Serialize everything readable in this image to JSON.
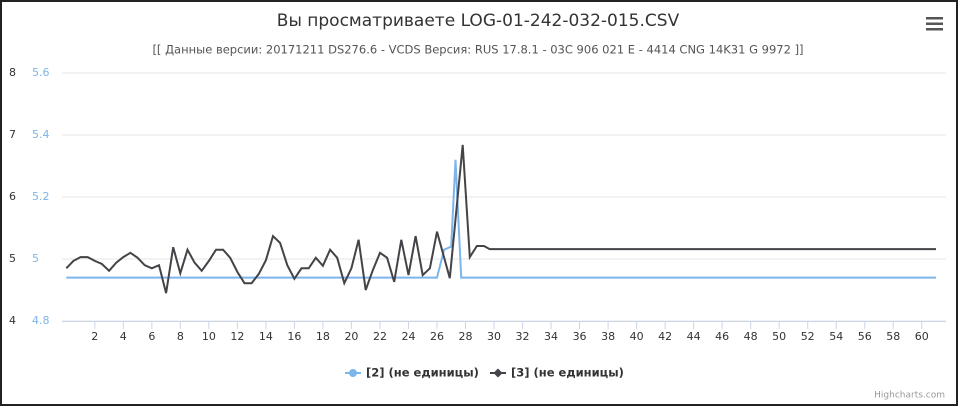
{
  "chart_data": {
    "type": "line",
    "title": "Вы просматриваете LOG-01-242-032-015.CSV",
    "subtitle": "[[ Данные версии: 20171211 DS276.6 - VCDS Версия: RUS 17.8.1 - 03C 906 021 E - 4414 CNG 14K31 G 9972 ]]",
    "credits": "Highcharts.com",
    "xlim": [
      -0.3,
      61.7
    ],
    "xticks": [
      2,
      4,
      6,
      8,
      10,
      12,
      14,
      16,
      18,
      20,
      22,
      24,
      26,
      28,
      30,
      32,
      34,
      36,
      38,
      40,
      42,
      44,
      46,
      48,
      50,
      52,
      54,
      56,
      58,
      60
    ],
    "ylim": [
      4,
      8
    ],
    "yticks": [
      4,
      5,
      6,
      7,
      8
    ],
    "y2lim": [
      4.8,
      5.6
    ],
    "y2ticks": [
      4.8,
      5,
      5.2,
      5.4,
      5.6
    ],
    "grid": true,
    "series": [
      {
        "name": "[2] (не единицы)",
        "color": "#7cb5ec",
        "axis": "y2",
        "x": [
          0,
          26,
          26.5,
          27,
          27.3,
          27.7,
          61
        ],
        "values": [
          4.94,
          4.94,
          5.03,
          5.04,
          5.32,
          4.94,
          4.94
        ]
      },
      {
        "name": "[3] (не единицы)",
        "color": "#434348",
        "x": [
          0,
          0.5,
          1,
          1.5,
          2,
          2.5,
          3,
          3.5,
          4,
          4.5,
          5,
          5.5,
          6,
          6.5,
          7,
          7.5,
          8,
          8.5,
          9,
          9.5,
          10,
          10.5,
          11,
          11.5,
          12,
          12.5,
          13,
          13.5,
          14,
          14.5,
          15,
          15.5,
          16,
          16.5,
          17,
          17.5,
          18,
          18.5,
          19,
          19.5,
          20,
          20.5,
          21,
          21.5,
          22,
          22.5,
          23,
          23.5,
          24,
          24.5,
          25,
          25.5,
          26,
          26.9,
          27.8,
          28.3,
          28.8,
          29.3,
          29.7,
          61
        ],
        "values": [
          4.85,
          4.97,
          5.03,
          5.03,
          4.97,
          4.92,
          4.81,
          4.94,
          5.03,
          5.1,
          5.02,
          4.9,
          4.85,
          4.9,
          4.45,
          5.19,
          4.77,
          5.15,
          4.94,
          4.81,
          4.97,
          5.15,
          5.15,
          5.02,
          4.79,
          4.61,
          4.61,
          4.76,
          4.98,
          5.37,
          5.26,
          4.9,
          4.68,
          4.85,
          4.85,
          5.02,
          4.89,
          5.15,
          5.02,
          4.61,
          4.85,
          5.31,
          4.5,
          4.82,
          5.1,
          5.02,
          4.63,
          5.31,
          4.74,
          5.37,
          4.74,
          4.85,
          5.44,
          4.69,
          6.84,
          5.03,
          5.21,
          5.21,
          5.16,
          5.16
        ]
      }
    ]
  }
}
